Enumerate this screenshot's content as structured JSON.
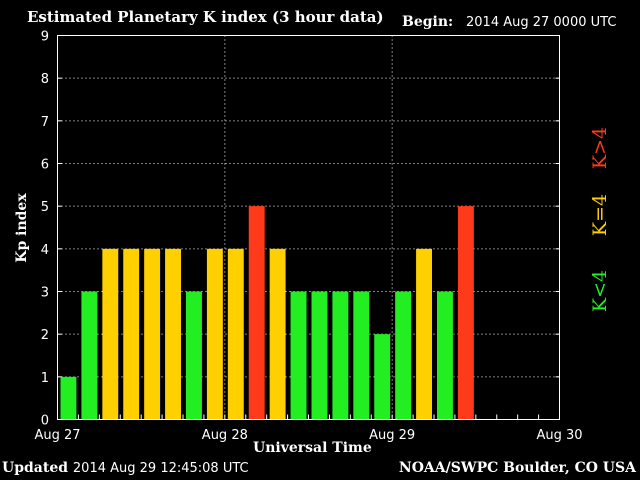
{
  "header": {
    "title": "Estimated Planetary K index (3 hour data)",
    "begin_label": "Begin:",
    "begin_value": "2014 Aug 27 0000 UTC"
  },
  "footer": {
    "updated_label": "Updated",
    "updated_value": "2014 Aug 29 12:45:08 UTC",
    "credit": "NOAA/SWPC Boulder, CO USA"
  },
  "legend": {
    "below": "K<4",
    "equal": "K=4",
    "above": "K>4"
  },
  "colors": {
    "below": "#22ee22",
    "equal": "#ffd000",
    "above": "#ff3a1a",
    "axis": "#ffffff",
    "background": "#000000"
  },
  "chart_data": {
    "type": "bar",
    "title": "Estimated Planetary K index (3 hour data)",
    "xlabel": "Universal Time",
    "ylabel": "Kp index",
    "ylim": [
      0,
      9
    ],
    "yticks": [
      "0",
      "1",
      "2",
      "3",
      "4",
      "5",
      "6",
      "7",
      "8",
      "9"
    ],
    "xticks": [
      "Aug 27",
      "Aug 28",
      "Aug 29",
      "Aug 30"
    ],
    "interval_hours": 3,
    "grid": "dotted, at each integer Kp and at each day boundary",
    "values": [
      1,
      3,
      4,
      4,
      4,
      4,
      3,
      4,
      4,
      5,
      4,
      3,
      3,
      3,
      3,
      2,
      3,
      4,
      3,
      5
    ]
  }
}
